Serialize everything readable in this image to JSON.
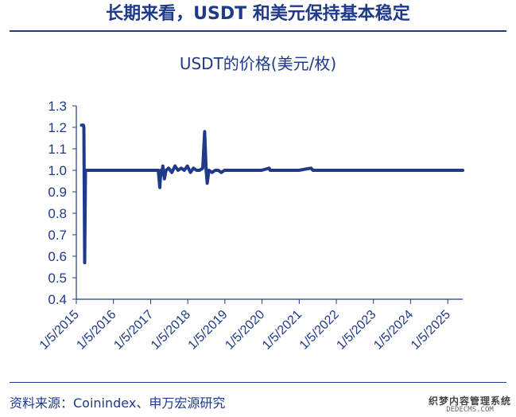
{
  "header": {
    "title": "长期来看，USDT 和美元保持基本稳定"
  },
  "footer": {
    "source": "资料来源：Coinindex、申万宏源研究"
  },
  "watermark": {
    "line1": "织梦内容管理系统",
    "line2": "DEDECMS.COM"
  },
  "chart_data": {
    "type": "line",
    "title": "USDT的价格(美元/枚)",
    "xlabel": "",
    "ylabel": "",
    "ylim": [
      0.4,
      1.3
    ],
    "yticks": [
      "0.4",
      "0.5",
      "0.6",
      "0.7",
      "0.8",
      "0.9",
      "1.0",
      "1.1",
      "1.2",
      "1.3"
    ],
    "xticks": [
      "1/5/2015",
      "1/5/2016",
      "1/5/2017",
      "1/5/2018",
      "1/5/2019",
      "1/5/2020",
      "1/5/2021",
      "1/5/2022",
      "1/5/2023",
      "1/5/2024",
      "1/5/2025"
    ],
    "xlim": [
      "2015-01-05",
      "2025-06-01"
    ],
    "grid": false,
    "series": [
      {
        "color": "#1f3a8a",
        "points": [
          [
            "2015-02-25",
            1.21
          ],
          [
            "2015-03-15",
            1.21
          ],
          [
            "2015-03-20",
            1.2
          ],
          [
            "2015-03-28",
            0.57
          ],
          [
            "2015-04-05",
            1.0
          ],
          [
            "2016-01-01",
            1.0
          ],
          [
            "2017-01-01",
            1.0
          ],
          [
            "2017-03-20",
            1.0
          ],
          [
            "2017-04-05",
            0.92
          ],
          [
            "2017-04-15",
            1.0
          ],
          [
            "2017-04-25",
            0.98
          ],
          [
            "2017-05-05",
            1.02
          ],
          [
            "2017-05-20",
            0.96
          ],
          [
            "2017-06-05",
            1.0
          ],
          [
            "2017-07-01",
            1.01
          ],
          [
            "2017-08-01",
            0.99
          ],
          [
            "2017-09-01",
            1.02
          ],
          [
            "2017-10-01",
            1.0
          ],
          [
            "2017-11-01",
            1.01
          ],
          [
            "2017-12-01",
            1.0
          ],
          [
            "2018-01-01",
            1.02
          ],
          [
            "2018-02-01",
            0.99
          ],
          [
            "2018-03-01",
            1.01
          ],
          [
            "2018-04-01",
            1.0
          ],
          [
            "2018-05-01",
            1.0
          ],
          [
            "2018-06-01",
            1.01
          ],
          [
            "2018-06-20",
            1.18
          ],
          [
            "2018-07-05",
            1.0
          ],
          [
            "2018-07-15",
            0.94
          ],
          [
            "2018-08-01",
            1.0
          ],
          [
            "2018-09-01",
            0.99
          ],
          [
            "2018-10-01",
            1.0
          ],
          [
            "2018-11-01",
            1.0
          ],
          [
            "2018-12-01",
            0.99
          ],
          [
            "2019-01-01",
            1.0
          ],
          [
            "2019-03-01",
            1.0
          ],
          [
            "2019-06-01",
            1.0
          ],
          [
            "2019-09-01",
            1.0
          ],
          [
            "2020-01-01",
            1.0
          ],
          [
            "2020-03-15",
            1.01
          ],
          [
            "2020-03-25",
            1.0
          ],
          [
            "2020-09-01",
            1.0
          ],
          [
            "2021-01-01",
            1.0
          ],
          [
            "2021-05-01",
            1.01
          ],
          [
            "2021-05-20",
            1.0
          ],
          [
            "2022-01-01",
            1.0
          ],
          [
            "2022-05-12",
            1.0
          ],
          [
            "2023-01-01",
            1.0
          ],
          [
            "2024-01-01",
            1.0
          ],
          [
            "2025-01-01",
            1.0
          ],
          [
            "2025-06-01",
            1.0
          ]
        ]
      }
    ]
  }
}
